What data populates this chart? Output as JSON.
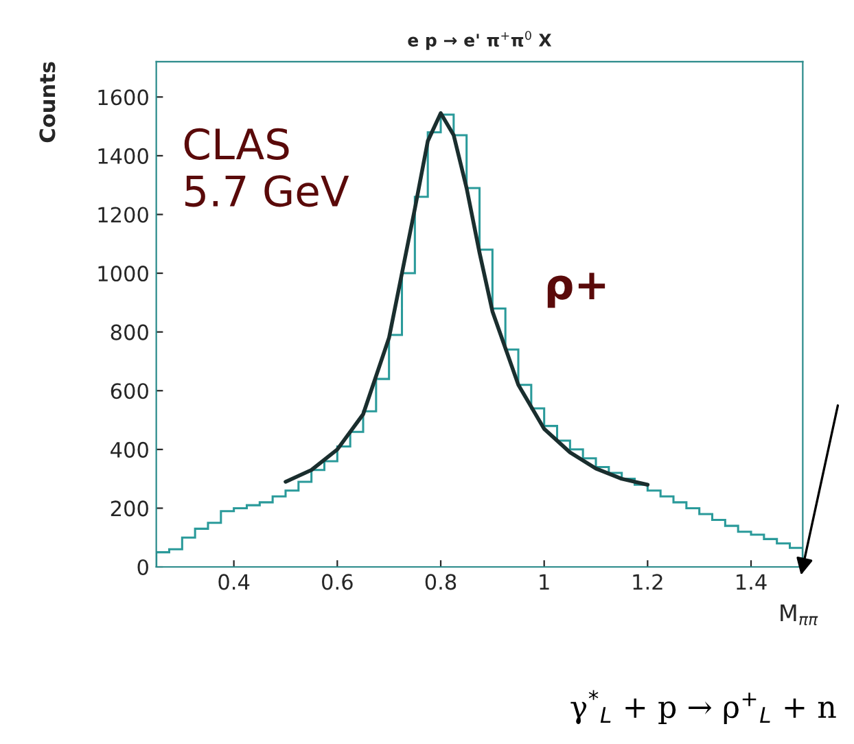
{
  "chart_data": {
    "type": "histogram",
    "title": "e p → e' π$^{+}$π$^{0}$ X",
    "xlabel": "M$_{ππ}$",
    "ylabel": "Counts",
    "bins": [
      0.25,
      0.275,
      0.3,
      0.325,
      0.35,
      0.375,
      0.4,
      0.425,
      0.45,
      0.475,
      0.5,
      0.525,
      0.55,
      0.575,
      0.6,
      0.625,
      0.65,
      0.675,
      0.7,
      0.725,
      0.75,
      0.775,
      0.8,
      0.825,
      0.85,
      0.875,
      0.9,
      0.925,
      0.95,
      0.975,
      1.0,
      1.025,
      1.05,
      1.075,
      1.1,
      1.125,
      1.15,
      1.175,
      1.2,
      1.225,
      1.25,
      1.275,
      1.3,
      1.325,
      1.35,
      1.375,
      1.4,
      1.425,
      1.45,
      1.475,
      1.5
    ],
    "values": [
      50,
      60,
      100,
      130,
      150,
      190,
      200,
      210,
      220,
      240,
      260,
      290,
      330,
      360,
      410,
      460,
      530,
      640,
      790,
      1000,
      1260,
      1480,
      1540,
      1470,
      1290,
      1080,
      880,
      740,
      620,
      540,
      480,
      430,
      400,
      370,
      340,
      320,
      300,
      280,
      260,
      240,
      220,
      200,
      180,
      160,
      140,
      120,
      110,
      95,
      80,
      65
    ],
    "color": "#2a9a9a",
    "series": [
      {
        "type": "line",
        "color": "#1a2e2e",
        "x": [
          0.5,
          0.55,
          0.6,
          0.65,
          0.7,
          0.75,
          0.775,
          0.8,
          0.825,
          0.85,
          0.875,
          0.9,
          0.95,
          1.0,
          1.05,
          1.1,
          1.15,
          1.2
        ],
        "values": [
          290,
          330,
          400,
          520,
          780,
          1220,
          1450,
          1545,
          1470,
          1290,
          1070,
          870,
          620,
          470,
          390,
          335,
          300,
          280
        ]
      }
    ],
    "xlim": [
      0.25,
      1.5
    ],
    "ylim": [
      0,
      1720
    ],
    "xticks": [
      0.4,
      0.6,
      0.8,
      1,
      1.2,
      1.4
    ],
    "yticks": [
      0,
      200,
      400,
      600,
      800,
      1000,
      1200,
      1400,
      1600
    ],
    "grid": false,
    "legend": false,
    "annotations": [
      "CLAS\n5.7 GeV",
      "ρ+",
      "γ$^{*}$$_{L}$ + p → ρ$^{+}$$_{L}$ + n"
    ]
  }
}
